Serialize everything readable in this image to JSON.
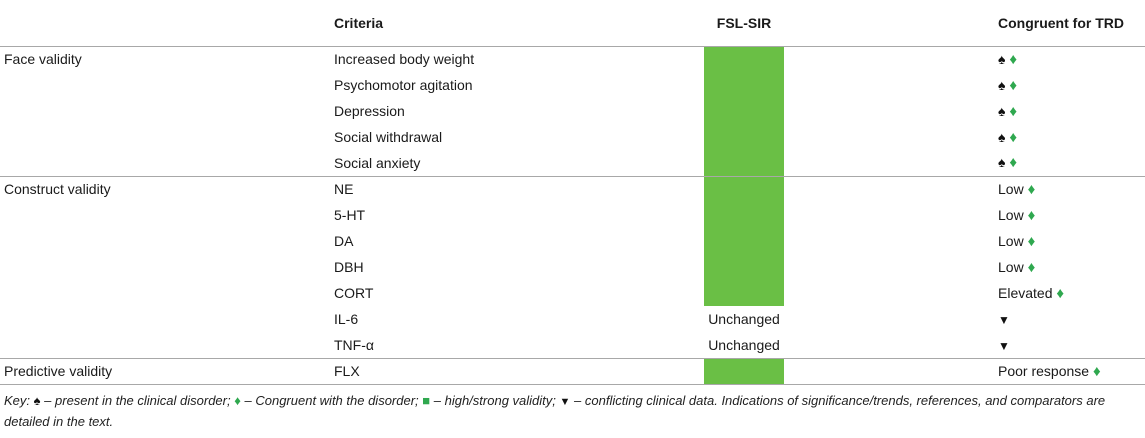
{
  "headers": {
    "criteria": "Criteria",
    "model": "FSL-SIR",
    "congruent": "Congruent for TRD"
  },
  "groups": [
    {
      "label": "Face validity",
      "rows": [
        {
          "criteria": "Increased body weight",
          "fsl": "",
          "congruent": ""
        },
        {
          "criteria": "Psychomotor agitation",
          "fsl": "",
          "congruent": ""
        },
        {
          "criteria": "Depression",
          "fsl": "",
          "congruent": ""
        },
        {
          "criteria": "Social withdrawal",
          "fsl": "",
          "congruent": ""
        },
        {
          "criteria": "Social anxiety",
          "fsl": "",
          "congruent": ""
        }
      ]
    },
    {
      "label": "Construct validity",
      "rows": [
        {
          "criteria": "NE",
          "fsl": "",
          "congruent": "Low"
        },
        {
          "criteria": "5-HT",
          "fsl": "",
          "congruent": "Low"
        },
        {
          "criteria": "DA",
          "fsl": "",
          "congruent": "Low"
        },
        {
          "criteria": "DBH",
          "fsl": "",
          "congruent": "Low"
        },
        {
          "criteria": "CORT",
          "fsl": "",
          "congruent": "Elevated"
        },
        {
          "criteria": "IL-6",
          "fsl": "Unchanged",
          "congruent": ""
        },
        {
          "criteria": "TNF-α",
          "fsl": "Unchanged",
          "congruent": ""
        }
      ]
    },
    {
      "label": "Predictive validity",
      "rows": [
        {
          "criteria": "FLX",
          "fsl": "",
          "congruent": "Poor response"
        }
      ]
    }
  ],
  "key": {
    "prefix": "Key:",
    "spade": "– present in the clinical disorder;",
    "diamond": "– Congruent with the disorder;",
    "square": "– high/strong validity;",
    "triangle": "– conflicting clinical data. Indications of significance/trends, references, and comparators are detailed in the text."
  },
  "colors": {
    "validity_green": "#6abf45",
    "diamond_green": "#2fa84f"
  }
}
